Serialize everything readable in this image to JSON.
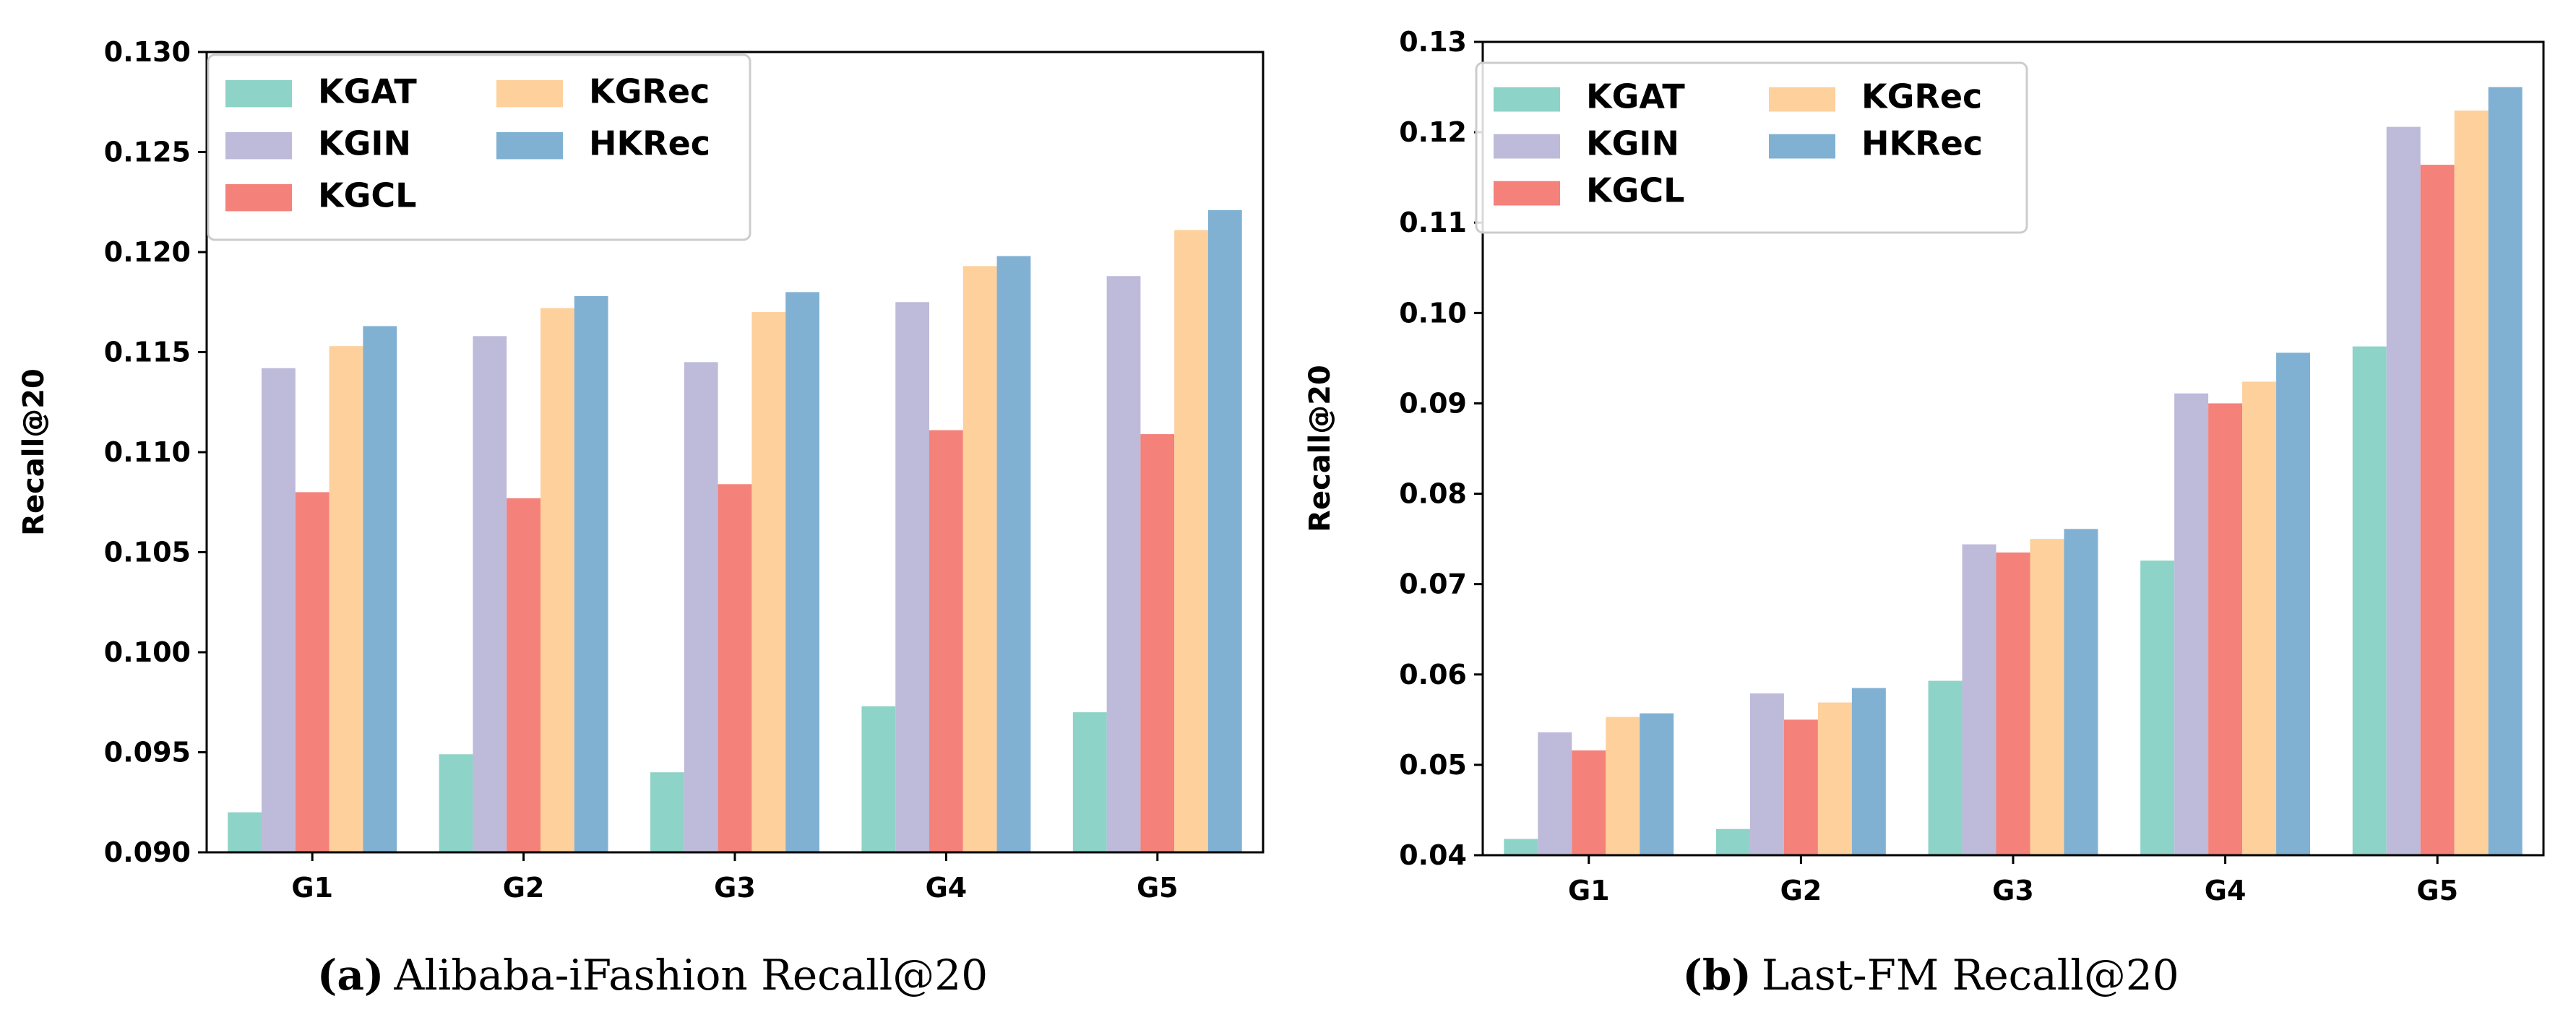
{
  "chart_data": [
    {
      "type": "bar",
      "caption_letter": "(a)",
      "caption_text": "Alibaba-iFashion Recall@20",
      "xlabel": "",
      "ylabel": "Recall@20",
      "ylim": [
        0.09,
        0.13
      ],
      "yticks": [
        "0.090",
        "0.095",
        "0.100",
        "0.105",
        "0.110",
        "0.115",
        "0.120",
        "0.125",
        "0.130"
      ],
      "categories": [
        "G1",
        "G2",
        "G3",
        "G4",
        "G5"
      ],
      "legend_position": "top-left",
      "series": [
        {
          "name": "KGAT",
          "color": "#8dd3c7",
          "values": [
            0.092,
            0.0949,
            0.094,
            0.0973,
            0.097
          ]
        },
        {
          "name": "KGIN",
          "color": "#bebada",
          "values": [
            0.1142,
            0.1158,
            0.1145,
            0.1175,
            0.1188
          ]
        },
        {
          "name": "KGCL",
          "color": "#f4817a",
          "values": [
            0.108,
            0.1077,
            0.1084,
            0.1111,
            0.1109
          ]
        },
        {
          "name": "KGRec",
          "color": "#fdd09c",
          "values": [
            0.1153,
            0.1172,
            0.117,
            0.1193,
            0.1211
          ]
        },
        {
          "name": "HKRec",
          "color": "#80b1d3",
          "values": [
            0.1163,
            0.1178,
            0.118,
            0.1198,
            0.1221
          ]
        }
      ]
    },
    {
      "type": "bar",
      "caption_letter": "(b)",
      "caption_text": "Last-FM Recall@20",
      "xlabel": "",
      "ylabel": "Recall@20",
      "ylim": [
        0.04,
        0.13
      ],
      "yticks": [
        "0.04",
        "0.05",
        "0.06",
        "0.07",
        "0.08",
        "0.09",
        "0.10",
        "0.11",
        "0.12",
        "0.13"
      ],
      "categories": [
        "G1",
        "G2",
        "G3",
        "G4",
        "G5"
      ],
      "legend_position": "top-left",
      "series": [
        {
          "name": "KGAT",
          "color": "#8dd3c7",
          "values": [
            0.0418,
            0.0429,
            0.0593,
            0.0726,
            0.0963
          ]
        },
        {
          "name": "KGIN",
          "color": "#bebada",
          "values": [
            0.0536,
            0.0579,
            0.0744,
            0.0911,
            0.1206
          ]
        },
        {
          "name": "KGCL",
          "color": "#f4817a",
          "values": [
            0.0516,
            0.055,
            0.0735,
            0.09,
            0.1164
          ]
        },
        {
          "name": "KGRec",
          "color": "#fdd09c",
          "values": [
            0.0553,
            0.0569,
            0.075,
            0.0924,
            0.1224
          ]
        },
        {
          "name": "HKRec",
          "color": "#80b1d3",
          "values": [
            0.0557,
            0.0585,
            0.0761,
            0.0956,
            0.125
          ]
        }
      ]
    }
  ]
}
